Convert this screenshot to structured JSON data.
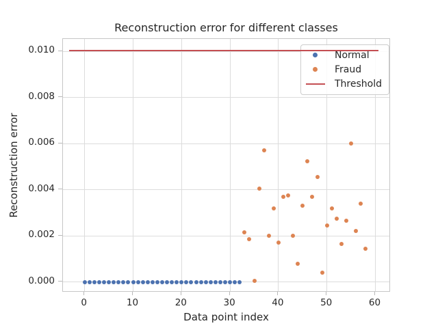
{
  "title": "Reconstruction error for different classes",
  "axes": {
    "xlabel": "Data point index",
    "ylabel": "Reconstruction error",
    "x_ticks": [
      "0",
      "10",
      "20",
      "30",
      "40",
      "50",
      "60"
    ],
    "x_tick_values": [
      0,
      10,
      20,
      30,
      40,
      50,
      60
    ],
    "y_ticks": [
      "0.000",
      "0.002",
      "0.004",
      "0.006",
      "0.008",
      "0.010"
    ],
    "y_tick_values": [
      0,
      0.002,
      0.004,
      0.006,
      0.008,
      0.01
    ]
  },
  "legend": {
    "items": [
      {
        "label": "Normal",
        "marker": "dot",
        "color": "#4c72b0"
      },
      {
        "label": "Fraud",
        "marker": "dot",
        "color": "#dd8452"
      },
      {
        "label": "Threshold",
        "marker": "line",
        "color": "#c44e52"
      }
    ]
  },
  "colors": {
    "normal": "#4c72b0",
    "fraud": "#dd8452",
    "threshold": "#c44e52",
    "grid": "#dcdcdc",
    "text": "#262626"
  },
  "chart_data": {
    "type": "scatter",
    "title": "Reconstruction error for different classes",
    "xlabel": "Data point index",
    "ylabel": "Reconstruction error",
    "xlim": [
      -4.5,
      63.3
    ],
    "ylim": [
      -0.0005,
      0.0105
    ],
    "grid": true,
    "legend_position": "upper right",
    "series": [
      {
        "name": "Normal",
        "type": "scatter",
        "color": "#4c72b0",
        "x": [
          0,
          1,
          2,
          3,
          4,
          5,
          6,
          7,
          8,
          9,
          10,
          11,
          12,
          13,
          14,
          15,
          16,
          17,
          18,
          19,
          20,
          21,
          22,
          23,
          24,
          25,
          26,
          27,
          28,
          29,
          30,
          31,
          32
        ],
        "y": [
          0,
          0,
          0,
          0,
          0,
          0,
          0,
          0,
          0,
          0,
          0,
          0,
          0,
          0,
          0,
          0,
          0,
          0,
          0,
          0,
          0,
          0,
          0,
          0,
          0,
          0,
          0,
          0,
          0,
          0,
          0,
          0,
          0
        ]
      },
      {
        "name": "Fraud",
        "type": "scatter",
        "color": "#dd8452",
        "x": [
          33,
          34,
          35,
          36,
          37,
          38,
          39,
          40,
          41,
          42,
          43,
          44,
          45,
          46,
          47,
          48,
          49,
          50,
          51,
          52,
          53,
          54,
          55,
          56,
          57,
          58
        ],
        "y": [
          0.00215,
          0.00185,
          5e-05,
          0.00405,
          0.0057,
          0.002,
          0.0032,
          0.0017,
          0.0037,
          0.00375,
          0.002,
          0.0008,
          0.0033,
          0.00525,
          0.0037,
          0.00455,
          0.0004,
          0.00245,
          0.0032,
          0.00275,
          0.00165,
          0.00265,
          0.006,
          0.0022,
          0.0034,
          0.00145
        ]
      },
      {
        "name": "Threshold",
        "type": "line",
        "color": "#c44e52",
        "x": [
          -3.1,
          60.8
        ],
        "y": [
          0.01,
          0.01
        ]
      }
    ]
  }
}
